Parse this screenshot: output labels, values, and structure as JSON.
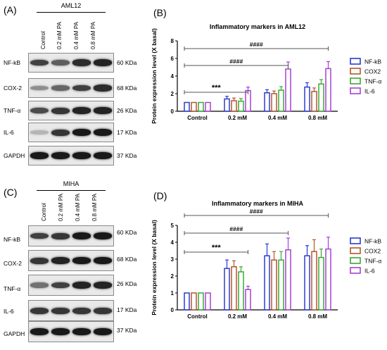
{
  "panel_labels": [
    "(A)",
    "(B)",
    "(C)",
    "(D)"
  ],
  "western_blots": [
    {
      "group": "AML12",
      "conditions": [
        "Control",
        "0.2 mM PA",
        "0.4 mM PA",
        "0.8 mM PA"
      ],
      "rows": [
        {
          "marker": "NF-kB",
          "kda": "60 KDa",
          "intensity": [
            0.75,
            0.6,
            0.85,
            0.9
          ]
        },
        {
          "marker": "COX-2",
          "kda": "68 KDa",
          "intensity": [
            0.35,
            0.55,
            0.75,
            0.85
          ]
        },
        {
          "marker": "TNF-α",
          "kda": "26 KDa",
          "intensity": [
            0.7,
            0.8,
            0.9,
            0.9
          ]
        },
        {
          "marker": "IL-6",
          "kda": "17 KDa",
          "intensity": [
            0.15,
            0.8,
            0.95,
            0.95
          ]
        },
        {
          "marker": "GAPDH",
          "kda": "37 KDa",
          "intensity": [
            0.95,
            0.95,
            0.95,
            0.95
          ]
        }
      ]
    },
    {
      "group": "MIHA",
      "conditions": [
        "Control",
        "0.2 mM PA",
        "0.4 mM PA",
        "0.8 mM PA"
      ],
      "rows": [
        {
          "marker": "NF-kB",
          "kda": "60 KDa",
          "intensity": [
            0.75,
            0.8,
            0.95,
            0.95
          ]
        },
        {
          "marker": "COX-2",
          "kda": "68 KDa",
          "intensity": [
            0.8,
            0.9,
            0.95,
            0.95
          ]
        },
        {
          "marker": "TNF-α",
          "kda": "26 KDa",
          "intensity": [
            0.5,
            0.75,
            0.9,
            0.9
          ]
        },
        {
          "marker": "IL-6",
          "kda": "17 KDa",
          "intensity": [
            0.8,
            0.8,
            0.8,
            0.8
          ]
        },
        {
          "marker": "GAPDH",
          "kda": "37 KDa",
          "intensity": [
            0.95,
            0.95,
            0.95,
            0.95
          ]
        }
      ]
    }
  ],
  "chart_data": [
    {
      "type": "bar",
      "title": "Inflammatory markers in AML12",
      "ylabel": "Protein expression level (X basal)",
      "xlabel": "",
      "categories": [
        "Control",
        "0.2 mM",
        "0.4 mM",
        "0.8 mM"
      ],
      "ylim": [
        0,
        8
      ],
      "yticks": [
        0,
        2,
        4,
        6,
        8
      ],
      "series": [
        {
          "name": "NF-kB",
          "color": "#2b3bd1",
          "values": [
            1.0,
            1.4,
            2.1,
            2.75
          ],
          "errors": [
            0.0,
            0.3,
            0.35,
            0.5
          ]
        },
        {
          "name": "COX2",
          "color": "#b5562a",
          "values": [
            1.0,
            1.2,
            2.0,
            2.25
          ],
          "errors": [
            0.0,
            0.3,
            0.3,
            0.4
          ]
        },
        {
          "name": "TNF-α",
          "color": "#39a935",
          "values": [
            1.0,
            1.15,
            2.4,
            3.1
          ],
          "errors": [
            0.0,
            0.3,
            0.4,
            0.5
          ]
        },
        {
          "name": "IL-6",
          "color": "#a93fd6",
          "values": [
            1.0,
            2.35,
            4.8,
            4.85
          ],
          "errors": [
            0.0,
            0.4,
            0.8,
            0.8
          ]
        }
      ],
      "brackets": [
        {
          "from": "Control",
          "to": "0.2 mM",
          "label": "***"
        },
        {
          "from": "Control",
          "to": "0.4 mM",
          "label": "####"
        },
        {
          "from": "Control",
          "to": "0.8 mM",
          "label": "####"
        }
      ],
      "legend": "right"
    },
    {
      "type": "bar",
      "title": "Inflammatory markers in MIHA",
      "ylabel": "Protein expression level (X basal)",
      "xlabel": "",
      "categories": [
        "Control",
        "0.2 mM",
        "0.4 mM",
        "0.8 mM"
      ],
      "ylim": [
        0,
        5
      ],
      "yticks": [
        0,
        1,
        2,
        3,
        4,
        5
      ],
      "series": [
        {
          "name": "NF-kB",
          "color": "#2b3bd1",
          "values": [
            1.0,
            2.45,
            3.2,
            3.2
          ],
          "errors": [
            0.0,
            0.5,
            0.7,
            0.6
          ]
        },
        {
          "name": "COX2",
          "color": "#b5562a",
          "values": [
            1.0,
            2.55,
            2.95,
            3.45
          ],
          "errors": [
            0.0,
            0.35,
            0.5,
            0.7
          ]
        },
        {
          "name": "TNF-α",
          "color": "#39a935",
          "values": [
            1.0,
            2.25,
            2.95,
            3.1
          ],
          "errors": [
            0.0,
            0.3,
            0.5,
            0.5
          ]
        },
        {
          "name": "IL-6",
          "color": "#a93fd6",
          "values": [
            1.0,
            1.2,
            3.55,
            3.6
          ],
          "errors": [
            0.0,
            0.2,
            0.7,
            0.7
          ]
        }
      ],
      "brackets": [
        {
          "from": "Control",
          "to": "0.2 mM",
          "label": "***"
        },
        {
          "from": "Control",
          "to": "0.4 mM",
          "label": "####"
        },
        {
          "from": "Control",
          "to": "0.8 mM",
          "label": "####"
        }
      ],
      "legend": "right"
    }
  ]
}
